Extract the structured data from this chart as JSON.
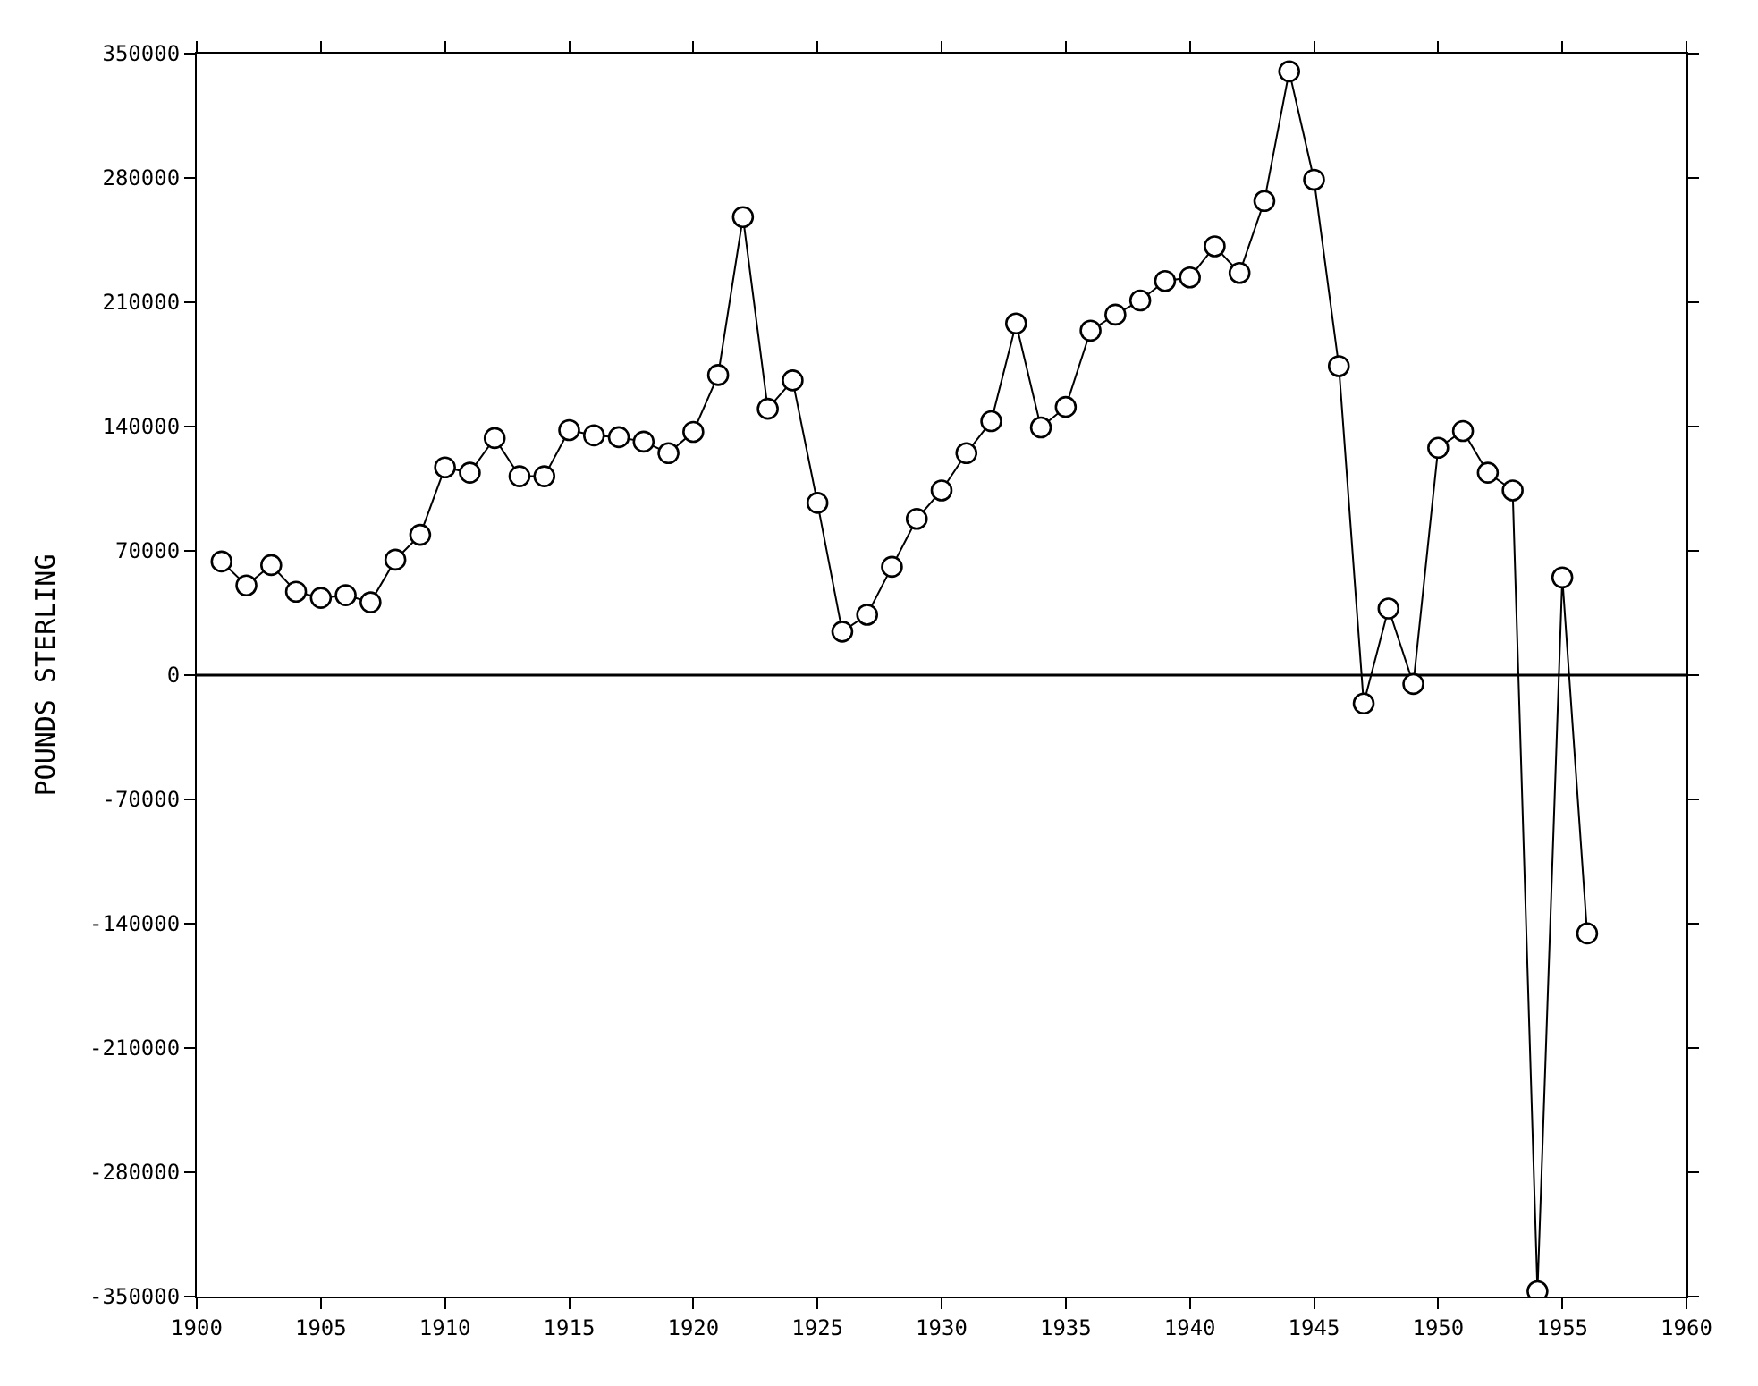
{
  "chart_data": {
    "type": "line",
    "ylabel": "POUNDS STERLING",
    "x": [
      1901,
      1902,
      1903,
      1904,
      1905,
      1906,
      1907,
      1908,
      1909,
      1910,
      1911,
      1912,
      1913,
      1914,
      1915,
      1916,
      1917,
      1918,
      1919,
      1920,
      1921,
      1922,
      1923,
      1924,
      1925,
      1926,
      1927,
      1928,
      1929,
      1930,
      1931,
      1932,
      1933,
      1934,
      1935,
      1936,
      1937,
      1938,
      1939,
      1940,
      1941,
      1942,
      1943,
      1944,
      1945,
      1946,
      1947,
      1948,
      1949,
      1950,
      1951,
      1952,
      1953,
      1954,
      1955,
      1956
    ],
    "series": [
      {
        "color": "#000000",
        "values": [
          64000,
          50500,
          62000,
          47000,
          43500,
          45000,
          41000,
          65000,
          79000,
          117000,
          114000,
          133500,
          112000,
          112000,
          138000,
          135000,
          134000,
          131500,
          125000,
          137000,
          169000,
          258000,
          150000,
          166000,
          97000,
          24500,
          34000,
          61000,
          88000,
          104000,
          125000,
          143000,
          198000,
          139500,
          151000,
          194000,
          203000,
          211000,
          222000,
          224000,
          241500,
          226500,
          267000,
          340000,
          279000,
          174000,
          -16000,
          37500,
          -5000,
          128000,
          137500,
          114000,
          104000,
          -347000,
          55000,
          -145500
        ]
      }
    ],
    "xlim": [
      1900,
      1960
    ],
    "xticks": [
      1900,
      1905,
      1910,
      1915,
      1920,
      1925,
      1930,
      1935,
      1940,
      1945,
      1950,
      1955,
      1960
    ],
    "ylim": [
      -350000,
      350000
    ],
    "yticks": [
      -350000,
      -280000,
      -210000,
      -140000,
      -70000,
      0,
      70000,
      140000,
      210000,
      280000,
      350000
    ],
    "ref_lines": [
      {
        "axis": "y",
        "value": 0,
        "color": "#000000"
      }
    ],
    "marker": "circle",
    "line_style": "solid",
    "grid": false
  }
}
